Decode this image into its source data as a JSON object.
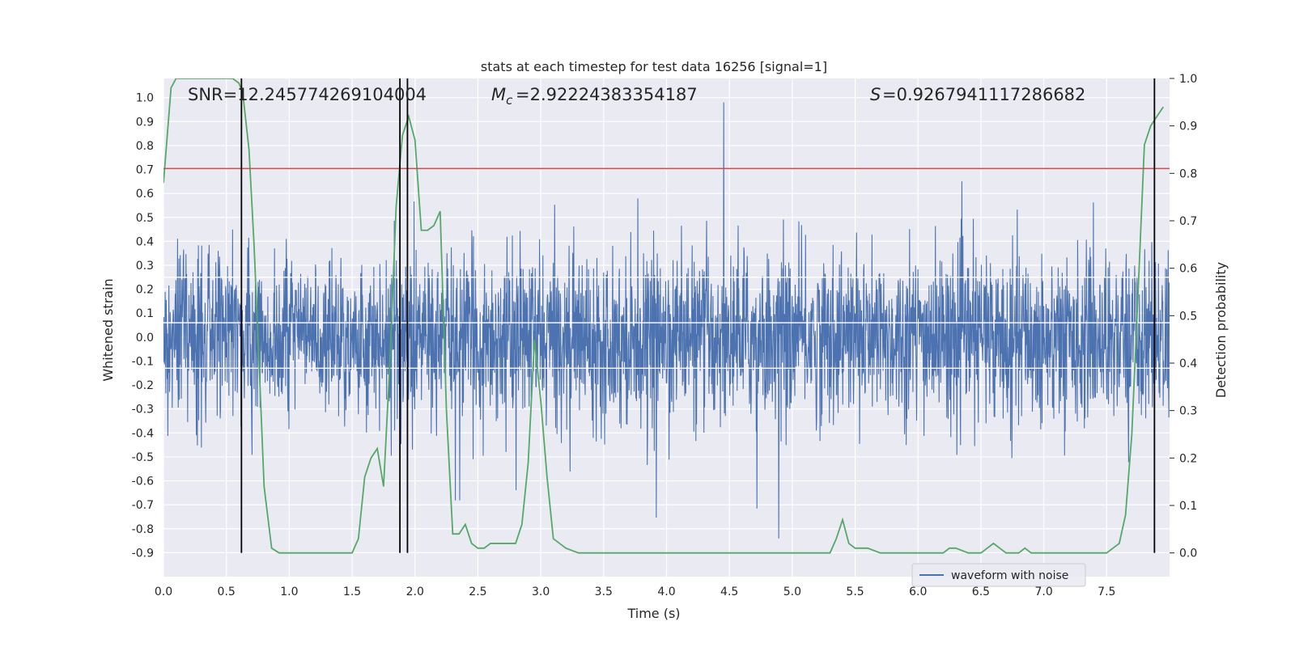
{
  "chart_data": {
    "type": "line",
    "title": "stats at each timestep for test data 16256 [signal=1]",
    "xlabel": "Time (s)",
    "ylabel_left": "Whitened strain",
    "ylabel_right": "Detection probability",
    "xlim": [
      0.0,
      8.0
    ],
    "ylim_left": [
      -1.0,
      1.08
    ],
    "ylim_right": [
      -0.05,
      1.0
    ],
    "x_ticks": [
      "0.0",
      "0.5",
      "1.0",
      "1.5",
      "2.0",
      "2.5",
      "3.0",
      "3.5",
      "4.0",
      "4.5",
      "5.0",
      "5.5",
      "6.0",
      "6.5",
      "7.0",
      "7.5"
    ],
    "y_left_ticks": [
      "1.0",
      "0.9",
      "0.8",
      "0.7",
      "0.6",
      "0.5",
      "0.4",
      "0.3",
      "0.2",
      "0.1",
      "0.0",
      "-0.1",
      "-0.2",
      "-0.3",
      "-0.4",
      "-0.5",
      "-0.6",
      "-0.7",
      "-0.8",
      "-0.9"
    ],
    "y_right_ticks": [
      "1.0",
      "0.9",
      "0.8",
      "0.7",
      "0.6",
      "0.5",
      "0.4",
      "0.3",
      "0.2",
      "0.1",
      "0.0"
    ],
    "grid": true,
    "legend_position": "lower-right",
    "annotations": {
      "snr": "SNR=12.245774269104004",
      "mc_value": "=2.92224383354187",
      "s_value": "=0.9267941117286682"
    },
    "threshold_line": 0.81,
    "vertical_lines_x": [
      0.62,
      1.88,
      1.94,
      7.88
    ],
    "series": [
      {
        "name": "waveform with noise",
        "color": "#4c72b0",
        "envelope": "noise band roughly between -0.35 and 0.35 with spikes up to ~1.0 and down to ~-0.88"
      },
      {
        "color": "#55a868",
        "axis": "right",
        "x": [
          0.0,
          0.06,
          0.1,
          0.15,
          0.2,
          0.25,
          0.3,
          0.35,
          0.4,
          0.45,
          0.5,
          0.55,
          0.6,
          0.63,
          0.68,
          0.72,
          0.76,
          0.8,
          0.86,
          0.92,
          1.0,
          1.1,
          1.2,
          1.3,
          1.4,
          1.5,
          1.55,
          1.6,
          1.65,
          1.7,
          1.75,
          1.8,
          1.85,
          1.9,
          1.95,
          2.0,
          2.05,
          2.1,
          2.15,
          2.2,
          2.25,
          2.3,
          2.35,
          2.4,
          2.45,
          2.5,
          2.55,
          2.6,
          2.65,
          2.7,
          2.75,
          2.8,
          2.85,
          2.9,
          2.95,
          3.0,
          3.05,
          3.1,
          3.15,
          3.2,
          3.3,
          3.4,
          3.5,
          3.6,
          3.8,
          4.0,
          4.2,
          4.4,
          4.6,
          4.8,
          5.0,
          5.1,
          5.2,
          5.25,
          5.3,
          5.35,
          5.4,
          5.45,
          5.5,
          5.6,
          5.7,
          5.8,
          6.0,
          6.15,
          6.2,
          6.25,
          6.3,
          6.4,
          6.45,
          6.5,
          6.55,
          6.6,
          6.65,
          6.7,
          6.75,
          6.8,
          6.85,
          6.9,
          7.0,
          7.2,
          7.4,
          7.5,
          7.55,
          7.6,
          7.65,
          7.7,
          7.75,
          7.8,
          7.85,
          7.9,
          7.95
        ],
        "values": [
          0.78,
          0.98,
          1.0,
          1.0,
          1.0,
          1.0,
          1.0,
          1.0,
          1.0,
          1.0,
          1.0,
          1.0,
          0.99,
          0.97,
          0.85,
          0.65,
          0.4,
          0.14,
          0.01,
          0.0,
          0.0,
          0.0,
          0.0,
          0.0,
          0.0,
          0.0,
          0.03,
          0.16,
          0.2,
          0.22,
          0.14,
          0.4,
          0.73,
          0.88,
          0.92,
          0.87,
          0.68,
          0.68,
          0.69,
          0.72,
          0.3,
          0.04,
          0.04,
          0.06,
          0.02,
          0.01,
          0.01,
          0.02,
          0.02,
          0.02,
          0.02,
          0.02,
          0.06,
          0.19,
          0.45,
          0.32,
          0.16,
          0.03,
          0.02,
          0.01,
          0.0,
          0.0,
          0.0,
          0.0,
          0.0,
          0.0,
          0.0,
          0.0,
          0.0,
          0.0,
          0.0,
          0.0,
          0.0,
          0.0,
          0.0,
          0.03,
          0.07,
          0.02,
          0.01,
          0.01,
          0.0,
          0.0,
          0.0,
          0.0,
          0.0,
          0.01,
          0.01,
          0.0,
          0.0,
          0.0,
          0.01,
          0.02,
          0.01,
          0.0,
          0.0,
          0.0,
          0.01,
          0.0,
          0.0,
          0.0,
          0.0,
          0.0,
          0.01,
          0.02,
          0.08,
          0.25,
          0.55,
          0.86,
          0.9,
          0.92,
          0.94
        ]
      }
    ]
  }
}
